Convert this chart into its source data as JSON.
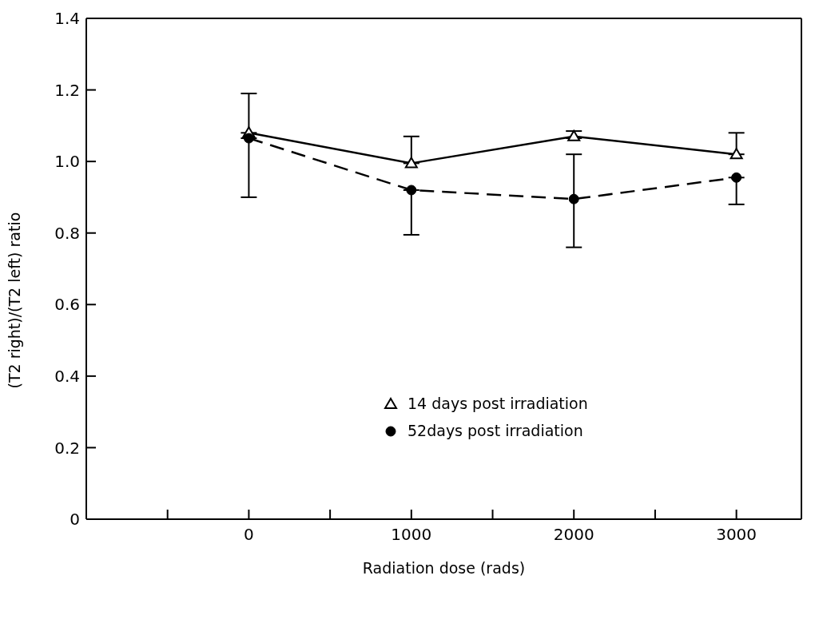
{
  "chart_data": {
    "type": "line",
    "xlabel": "Radiation dose (rads)",
    "ylabel": "(T2 right)/(T2 left) ratio",
    "x": [
      0,
      1000,
      2000,
      3000
    ],
    "series": [
      {
        "name": "14 days post irradiation",
        "color": "#000000",
        "marker": "triangle",
        "line_style": "solid",
        "values": [
          1.08,
          0.995,
          1.07,
          1.02
        ],
        "errors": [
          [
            1.08,
            1.19
          ],
          [
            0.995,
            1.07
          ],
          [
            1.065,
            1.085
          ],
          [
            1.02,
            1.08
          ]
        ]
      },
      {
        "name": "52days post irradiation",
        "color": "#000000",
        "marker": "circle",
        "line_style": "dashed",
        "values": [
          1.065,
          0.92,
          0.895,
          0.955
        ],
        "errors": [
          [
            0.9,
            1.065
          ],
          [
            0.795,
            0.92
          ],
          [
            0.76,
            1.02
          ],
          [
            0.88,
            0.955
          ]
        ]
      }
    ],
    "xlim": [
      -1000,
      3400
    ],
    "xticks": [
      {
        "value": -500,
        "label": null
      },
      0,
      {
        "value": 500,
        "label": null
      },
      1000,
      {
        "value": 1500,
        "label": null
      },
      2000,
      {
        "value": 2500,
        "label": null
      },
      3000
    ],
    "ylim": [
      0,
      1.4
    ],
    "yticks": [
      0,
      0.2,
      0.4,
      0.6,
      0.8,
      {
        "value": 1,
        "label": "1.0"
      },
      1.2,
      1.4
    ],
    "grid": false,
    "legend": "center"
  }
}
